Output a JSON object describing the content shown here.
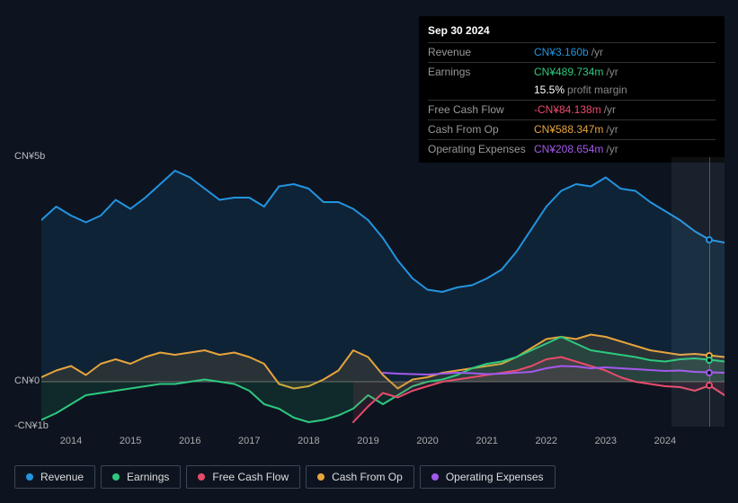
{
  "tooltip": {
    "date": "Sep 30 2024",
    "rows": [
      {
        "label": "Revenue",
        "value": "CN¥3.160b",
        "unit": "/yr",
        "color": "#2394df"
      },
      {
        "label": "Earnings",
        "value": "CN¥489.734m",
        "unit": "/yr",
        "color": "#2dc97e"
      },
      {
        "label": "",
        "value": "15.5%",
        "unit": "profit margin",
        "color": "#ffffff"
      },
      {
        "label": "Free Cash Flow",
        "value": "-CN¥84.138m",
        "unit": "/yr",
        "color": "#e84b6b"
      },
      {
        "label": "Cash From Op",
        "value": "CN¥588.347m",
        "unit": "/yr",
        "color": "#e6a43c"
      },
      {
        "label": "Operating Expenses",
        "value": "CN¥208.654m",
        "unit": "/yr",
        "color": "#a259ec"
      }
    ]
  },
  "chart": {
    "type": "line-area",
    "background_color": "#0d1420",
    "grid_color": "#2a3340",
    "zero_line_color": "#666",
    "y_axis": {
      "min": -1,
      "max": 5,
      "labels": [
        {
          "text": "CN¥5b",
          "value": 5
        },
        {
          "text": "CN¥0",
          "value": 0
        },
        {
          "text": "-CN¥1b",
          "value": -1
        }
      ],
      "fontsize": 11
    },
    "x_axis": {
      "min": 2013.5,
      "max": 2025,
      "labels": [
        "2014",
        "2015",
        "2016",
        "2017",
        "2018",
        "2019",
        "2020",
        "2021",
        "2022",
        "2023",
        "2024"
      ],
      "fontsize": 11
    },
    "highlight_band": {
      "from": 2024.1,
      "to": 2025
    },
    "crosshair_x": 2024.75,
    "markers_x": 2024.75,
    "series": [
      {
        "name": "Revenue",
        "color": "#2394df",
        "line_width": 2,
        "fill_opacity": 0.12,
        "data": [
          [
            2013.5,
            3.6
          ],
          [
            2013.75,
            3.9
          ],
          [
            2014,
            3.7
          ],
          [
            2014.25,
            3.55
          ],
          [
            2014.5,
            3.7
          ],
          [
            2014.75,
            4.05
          ],
          [
            2015,
            3.85
          ],
          [
            2015.25,
            4.1
          ],
          [
            2015.5,
            4.4
          ],
          [
            2015.75,
            4.7
          ],
          [
            2016,
            4.55
          ],
          [
            2016.25,
            4.3
          ],
          [
            2016.5,
            4.05
          ],
          [
            2016.75,
            4.1
          ],
          [
            2017,
            4.1
          ],
          [
            2017.25,
            3.9
          ],
          [
            2017.5,
            4.35
          ],
          [
            2017.75,
            4.4
          ],
          [
            2018,
            4.3
          ],
          [
            2018.25,
            4.0
          ],
          [
            2018.5,
            4.0
          ],
          [
            2018.75,
            3.85
          ],
          [
            2019,
            3.6
          ],
          [
            2019.25,
            3.2
          ],
          [
            2019.5,
            2.7
          ],
          [
            2019.75,
            2.3
          ],
          [
            2020,
            2.05
          ],
          [
            2020.25,
            2.0
          ],
          [
            2020.5,
            2.1
          ],
          [
            2020.75,
            2.15
          ],
          [
            2021,
            2.3
          ],
          [
            2021.25,
            2.5
          ],
          [
            2021.5,
            2.9
          ],
          [
            2021.75,
            3.4
          ],
          [
            2022,
            3.9
          ],
          [
            2022.25,
            4.25
          ],
          [
            2022.5,
            4.4
          ],
          [
            2022.75,
            4.35
          ],
          [
            2023,
            4.55
          ],
          [
            2023.25,
            4.3
          ],
          [
            2023.5,
            4.25
          ],
          [
            2023.75,
            4.0
          ],
          [
            2024,
            3.8
          ],
          [
            2024.25,
            3.6
          ],
          [
            2024.5,
            3.35
          ],
          [
            2024.75,
            3.16
          ],
          [
            2025,
            3.1
          ]
        ]
      },
      {
        "name": "Cash From Op",
        "color": "#e6a43c",
        "line_width": 2,
        "fill_opacity": 0.12,
        "data": [
          [
            2013.5,
            0.1
          ],
          [
            2013.75,
            0.25
          ],
          [
            2014,
            0.35
          ],
          [
            2014.25,
            0.15
          ],
          [
            2014.5,
            0.4
          ],
          [
            2014.75,
            0.5
          ],
          [
            2015,
            0.4
          ],
          [
            2015.25,
            0.55
          ],
          [
            2015.5,
            0.65
          ],
          [
            2015.75,
            0.6
          ],
          [
            2016,
            0.65
          ],
          [
            2016.25,
            0.7
          ],
          [
            2016.5,
            0.6
          ],
          [
            2016.75,
            0.65
          ],
          [
            2017,
            0.55
          ],
          [
            2017.25,
            0.4
          ],
          [
            2017.5,
            -0.05
          ],
          [
            2017.75,
            -0.15
          ],
          [
            2018,
            -0.1
          ],
          [
            2018.25,
            0.05
          ],
          [
            2018.5,
            0.25
          ],
          [
            2018.75,
            0.7
          ],
          [
            2019,
            0.55
          ],
          [
            2019.25,
            0.15
          ],
          [
            2019.5,
            -0.15
          ],
          [
            2019.75,
            0.05
          ],
          [
            2020,
            0.1
          ],
          [
            2020.25,
            0.2
          ],
          [
            2020.5,
            0.25
          ],
          [
            2020.75,
            0.3
          ],
          [
            2021,
            0.35
          ],
          [
            2021.25,
            0.4
          ],
          [
            2021.5,
            0.55
          ],
          [
            2021.75,
            0.75
          ],
          [
            2022,
            0.95
          ],
          [
            2022.25,
            1.0
          ],
          [
            2022.5,
            0.95
          ],
          [
            2022.75,
            1.05
          ],
          [
            2023,
            1.0
          ],
          [
            2023.25,
            0.9
          ],
          [
            2023.5,
            0.8
          ],
          [
            2023.75,
            0.7
          ],
          [
            2024,
            0.65
          ],
          [
            2024.25,
            0.6
          ],
          [
            2024.5,
            0.62
          ],
          [
            2024.75,
            0.588
          ],
          [
            2025,
            0.55
          ]
        ]
      },
      {
        "name": "Earnings",
        "color": "#2dc97e",
        "line_width": 2,
        "fill_opacity": 0.12,
        "data": [
          [
            2013.5,
            -0.85
          ],
          [
            2013.75,
            -0.7
          ],
          [
            2014,
            -0.5
          ],
          [
            2014.25,
            -0.3
          ],
          [
            2014.5,
            -0.25
          ],
          [
            2014.75,
            -0.2
          ],
          [
            2015,
            -0.15
          ],
          [
            2015.25,
            -0.1
          ],
          [
            2015.5,
            -0.05
          ],
          [
            2015.75,
            -0.05
          ],
          [
            2016,
            0.0
          ],
          [
            2016.25,
            0.05
          ],
          [
            2016.5,
            0.0
          ],
          [
            2016.75,
            -0.05
          ],
          [
            2017,
            -0.2
          ],
          [
            2017.25,
            -0.5
          ],
          [
            2017.5,
            -0.6
          ],
          [
            2017.75,
            -0.8
          ],
          [
            2018,
            -0.9
          ],
          [
            2018.25,
            -0.85
          ],
          [
            2018.5,
            -0.75
          ],
          [
            2018.75,
            -0.6
          ],
          [
            2019,
            -0.3
          ],
          [
            2019.25,
            -0.5
          ],
          [
            2019.5,
            -0.3
          ],
          [
            2019.75,
            -0.1
          ],
          [
            2020,
            0.0
          ],
          [
            2020.25,
            0.05
          ],
          [
            2020.5,
            0.15
          ],
          [
            2020.75,
            0.3
          ],
          [
            2021,
            0.4
          ],
          [
            2021.25,
            0.45
          ],
          [
            2021.5,
            0.55
          ],
          [
            2021.75,
            0.7
          ],
          [
            2022,
            0.85
          ],
          [
            2022.25,
            1.0
          ],
          [
            2022.5,
            0.85
          ],
          [
            2022.75,
            0.7
          ],
          [
            2023,
            0.65
          ],
          [
            2023.25,
            0.6
          ],
          [
            2023.5,
            0.55
          ],
          [
            2023.75,
            0.48
          ],
          [
            2024,
            0.45
          ],
          [
            2024.25,
            0.5
          ],
          [
            2024.5,
            0.52
          ],
          [
            2024.75,
            0.49
          ],
          [
            2025,
            0.45
          ]
        ]
      },
      {
        "name": "Free Cash Flow",
        "color": "#e84b6b",
        "line_width": 2,
        "fill_opacity": 0.12,
        "data": [
          [
            2018.75,
            -0.9
          ],
          [
            2019,
            -0.55
          ],
          [
            2019.25,
            -0.25
          ],
          [
            2019.5,
            -0.35
          ],
          [
            2019.75,
            -0.2
          ],
          [
            2020,
            -0.1
          ],
          [
            2020.25,
            0.0
          ],
          [
            2020.5,
            0.05
          ],
          [
            2020.75,
            0.1
          ],
          [
            2021,
            0.15
          ],
          [
            2021.25,
            0.2
          ],
          [
            2021.5,
            0.25
          ],
          [
            2021.75,
            0.35
          ],
          [
            2022,
            0.5
          ],
          [
            2022.25,
            0.55
          ],
          [
            2022.5,
            0.45
          ],
          [
            2022.75,
            0.35
          ],
          [
            2023,
            0.25
          ],
          [
            2023.25,
            0.1
          ],
          [
            2023.5,
            0.0
          ],
          [
            2023.75,
            -0.05
          ],
          [
            2024,
            -0.1
          ],
          [
            2024.25,
            -0.12
          ],
          [
            2024.5,
            -0.2
          ],
          [
            2024.75,
            -0.084
          ],
          [
            2025,
            -0.3
          ]
        ]
      },
      {
        "name": "Operating Expenses",
        "color": "#a259ec",
        "line_width": 2,
        "fill_opacity": 0.0,
        "data": [
          [
            2019.25,
            0.2
          ],
          [
            2019.5,
            0.18
          ],
          [
            2019.75,
            0.17
          ],
          [
            2020,
            0.16
          ],
          [
            2020.25,
            0.18
          ],
          [
            2020.5,
            0.2
          ],
          [
            2020.75,
            0.19
          ],
          [
            2021,
            0.17
          ],
          [
            2021.25,
            0.18
          ],
          [
            2021.5,
            0.2
          ],
          [
            2021.75,
            0.22
          ],
          [
            2022,
            0.3
          ],
          [
            2022.25,
            0.35
          ],
          [
            2022.5,
            0.34
          ],
          [
            2022.75,
            0.3
          ],
          [
            2023,
            0.32
          ],
          [
            2023.25,
            0.3
          ],
          [
            2023.5,
            0.28
          ],
          [
            2023.75,
            0.26
          ],
          [
            2024,
            0.24
          ],
          [
            2024.25,
            0.25
          ],
          [
            2024.5,
            0.22
          ],
          [
            2024.75,
            0.209
          ],
          [
            2025,
            0.2
          ]
        ]
      }
    ],
    "legend_items": [
      {
        "label": "Revenue",
        "color": "#2394df"
      },
      {
        "label": "Earnings",
        "color": "#2dc97e"
      },
      {
        "label": "Free Cash Flow",
        "color": "#e84b6b"
      },
      {
        "label": "Cash From Op",
        "color": "#e6a43c"
      },
      {
        "label": "Operating Expenses",
        "color": "#a259ec"
      }
    ]
  }
}
